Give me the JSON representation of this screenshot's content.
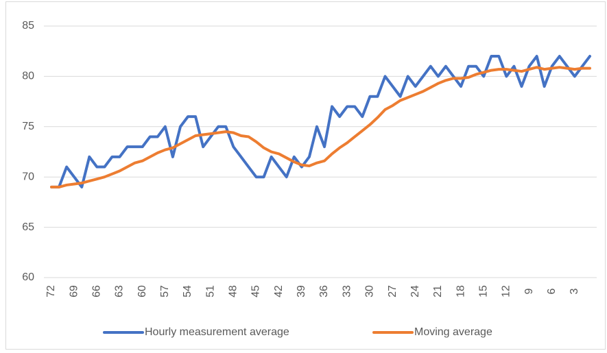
{
  "chart_data": {
    "type": "line",
    "categories": [
      72,
      null,
      null,
      69,
      null,
      null,
      66,
      null,
      null,
      63,
      null,
      null,
      60,
      null,
      null,
      57,
      null,
      null,
      54,
      null,
      null,
      51,
      null,
      null,
      48,
      null,
      null,
      45,
      null,
      null,
      42,
      null,
      null,
      39,
      null,
      null,
      36,
      null,
      null,
      33,
      null,
      null,
      30,
      null,
      null,
      27,
      null,
      null,
      24,
      null,
      null,
      21,
      null,
      null,
      18,
      null,
      null,
      15,
      null,
      null,
      12,
      null,
      null,
      9,
      null,
      null,
      6,
      null,
      null,
      3,
      null,
      null
    ],
    "series": [
      {
        "name": "Hourly measurement average",
        "color": "#4472c4",
        "values": [
          69,
          69,
          71,
          70,
          69,
          72,
          71,
          71,
          72,
          72,
          73,
          73,
          73,
          74,
          74,
          75,
          72,
          75,
          76,
          76,
          73,
          74,
          75,
          75,
          73,
          72,
          71,
          70,
          70,
          72,
          71,
          70,
          72,
          71,
          72,
          75,
          73,
          77,
          76,
          77,
          77,
          76,
          78,
          78,
          80,
          79,
          78,
          80,
          79,
          80,
          81,
          80,
          81,
          80,
          79,
          81,
          81,
          80,
          82,
          82,
          80,
          81,
          79,
          81,
          82,
          79,
          81,
          82,
          81,
          80,
          81,
          82
        ]
      },
      {
        "name": "Moving average",
        "color": "#ed7d31",
        "values": [
          69,
          69,
          69.2,
          69.3,
          69.4,
          69.6,
          69.8,
          70,
          70.3,
          70.6,
          71,
          71.4,
          71.6,
          72,
          72.4,
          72.7,
          72.9,
          73.3,
          73.7,
          74.1,
          74.2,
          74.3,
          74.4,
          74.5,
          74.4,
          74.1,
          74,
          73.5,
          72.9,
          72.5,
          72.3,
          71.9,
          71.5,
          71.2,
          71.1,
          71.4,
          71.6,
          72.3,
          72.9,
          73.4,
          74,
          74.6,
          75.2,
          75.9,
          76.7,
          77.1,
          77.6,
          77.9,
          78.2,
          78.5,
          78.9,
          79.3,
          79.6,
          79.8,
          79.8,
          79.9,
          80.2,
          80.4,
          80.6,
          80.7,
          80.7,
          80.6,
          80.5,
          80.7,
          80.9,
          80.7,
          80.8,
          80.9,
          80.8,
          80.7,
          80.8,
          80.8
        ]
      }
    ],
    "ylim": [
      60,
      85
    ],
    "yticks": [
      60,
      65,
      70,
      75,
      80,
      85
    ],
    "grid": true,
    "legend": "bottom"
  }
}
